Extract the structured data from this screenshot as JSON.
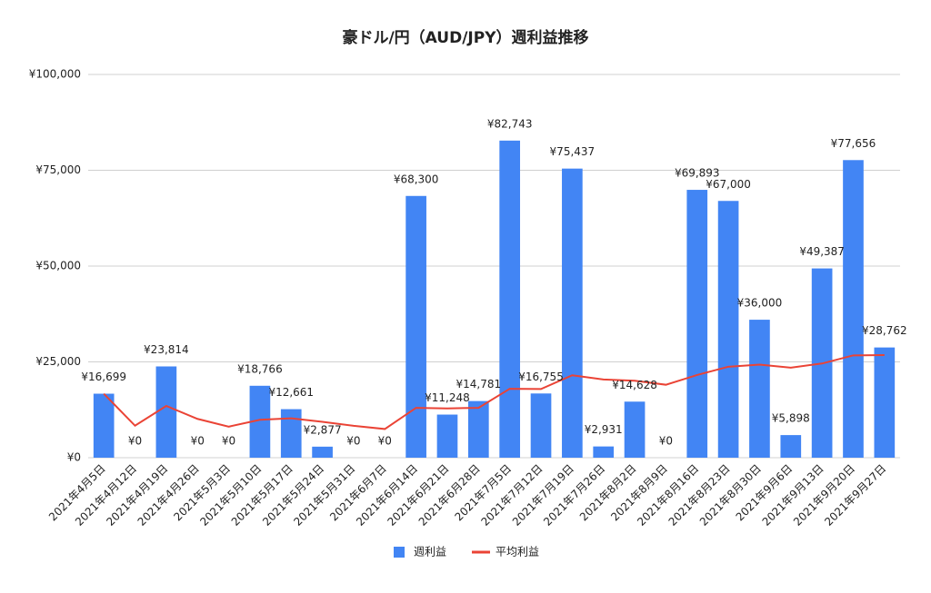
{
  "chart_data": {
    "type": "bar_line",
    "title": "豪ドル/円（AUD/JPY）週利益推移",
    "categories": [
      "2021年4月5日",
      "2021年4月12日",
      "2021年4月19日",
      "2021年4月26日",
      "2021年5月3日",
      "2021年5月10日",
      "2021年5月17日",
      "2021年5月24日",
      "2021年5月31日",
      "2021年6月7日",
      "2021年6月14日",
      "2021年6月21日",
      "2021年6月28日",
      "2021年7月5日",
      "2021年7月12日",
      "2021年7月19日",
      "2021年7月26日",
      "2021年8月2日",
      "2021年8月9日",
      "2021年8月16日",
      "2021年8月23日",
      "2021年8月30日",
      "2021年9月6日",
      "2021年9月13日",
      "2021年9月20日",
      "2021年9月27日"
    ],
    "series": [
      {
        "name": "週利益",
        "type": "bar",
        "color": "#4285f4",
        "values": [
          16699,
          0,
          23814,
          0,
          0,
          18766,
          12661,
          2877,
          0,
          0,
          68300,
          11248,
          14781,
          82743,
          16755,
          75437,
          2931,
          14628,
          0,
          69893,
          67000,
          36000,
          5898,
          49387,
          77656,
          28762
        ],
        "value_labels": [
          "¥16,699",
          "¥0",
          "¥23,814",
          "¥0",
          "¥0",
          "¥18,766",
          "¥12,661",
          "¥2,877",
          "¥0",
          "¥0",
          "¥68,300",
          "¥11,248",
          "¥14,781",
          "¥82,743",
          "¥16,755",
          "¥75,437",
          "¥2,931",
          "¥14,628",
          "¥0",
          "¥69,893",
          "¥67,000",
          "¥36,000",
          "¥5,898",
          "¥49,387",
          "¥77,656",
          "¥28,762"
        ]
      },
      {
        "name": "平均利益",
        "type": "line",
        "color": "#ea4335",
        "values": [
          16699,
          8350,
          13504,
          10128,
          8103,
          9880,
          10277,
          9352,
          8313,
          7482,
          13011,
          12864,
          13011,
          17992,
          17910,
          21505,
          20412,
          20091,
          19034,
          21577,
          23740,
          24297,
          23497,
          24576,
          26699,
          26778
        ]
      }
    ],
    "ylim": [
      0,
      100000
    ],
    "yticks": [
      {
        "value": 0,
        "label": "¥0"
      },
      {
        "value": 25000,
        "label": "¥25,000"
      },
      {
        "value": 50000,
        "label": "¥50,000"
      },
      {
        "value": 75000,
        "label": "¥75,000"
      },
      {
        "value": 100000,
        "label": "¥100,000"
      }
    ],
    "grid": true,
    "legend": "bottom"
  }
}
